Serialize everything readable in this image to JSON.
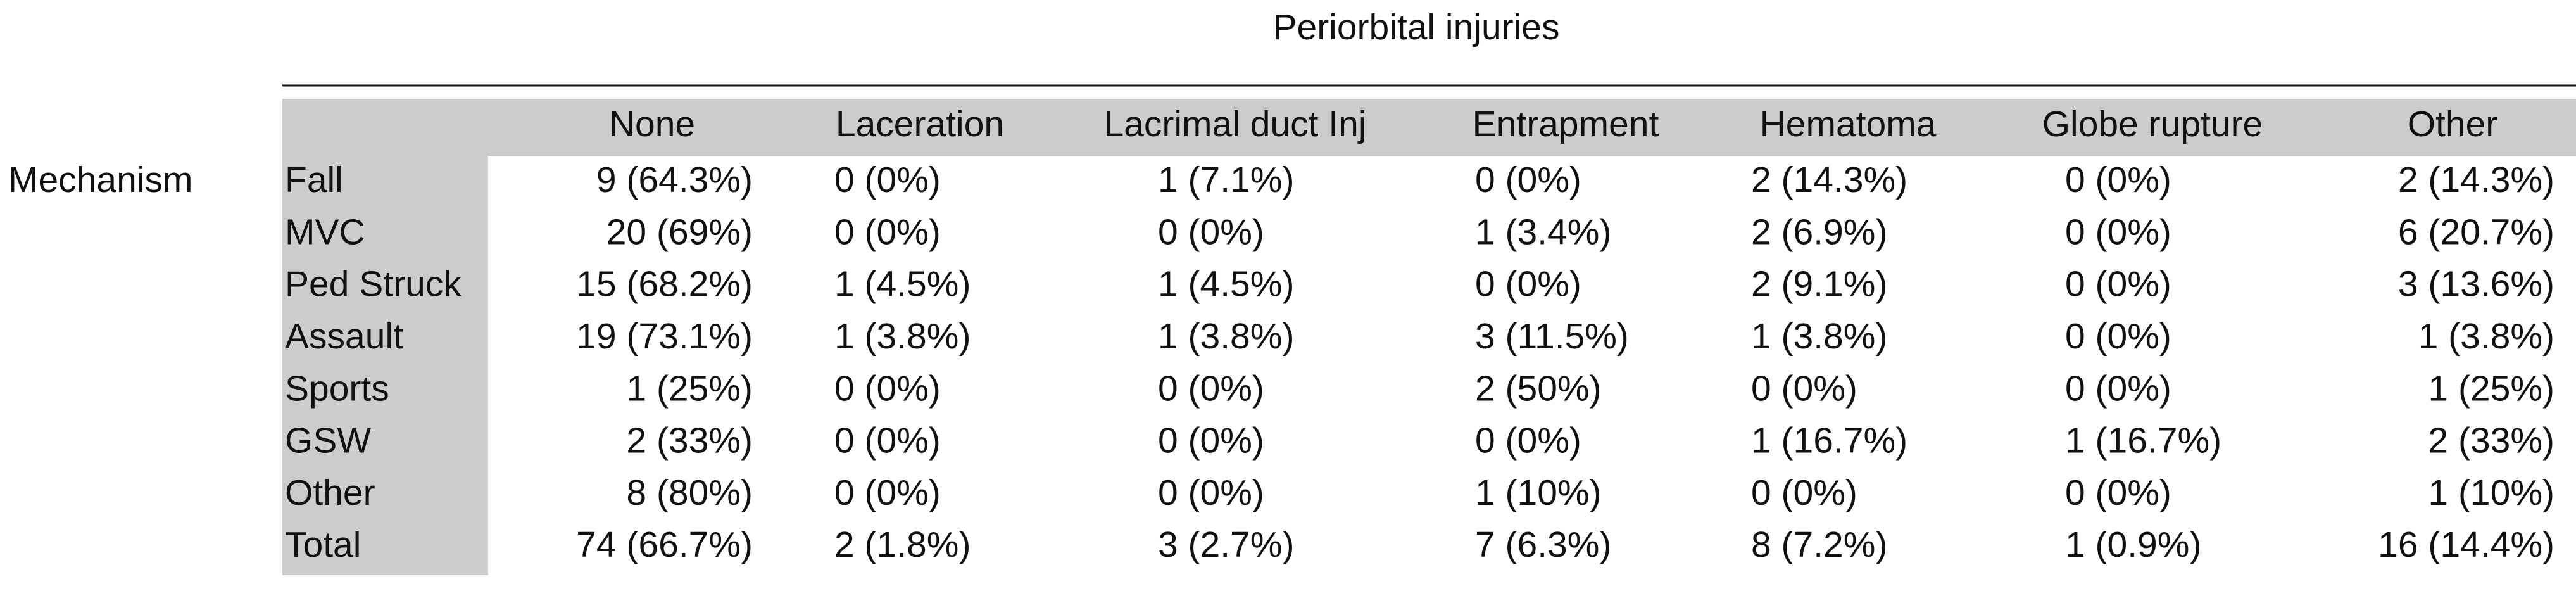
{
  "title": "Periorbital injuries",
  "table": {
    "row_group": "Mechanism",
    "columns": [
      "None",
      "Laceration",
      "Lacrimal duct Inj",
      "Entrapment",
      "Hematoma",
      "Globe rupture",
      "Other"
    ],
    "rows": [
      {
        "label": "Fall",
        "cells": [
          "9 (64.3%)",
          "0 (0%)",
          "1 (7.1%)",
          "0 (0%)",
          "2 (14.3%)",
          "0 (0%)",
          "2 (14.3%)"
        ]
      },
      {
        "label": "MVC",
        "cells": [
          "20 (69%)",
          "0 (0%)",
          "0 (0%)",
          "1 (3.4%)",
          "2 (6.9%)",
          "0 (0%)",
          "6 (20.7%)"
        ]
      },
      {
        "label": "Ped Struck",
        "cells": [
          "15 (68.2%)",
          "1 (4.5%)",
          "1 (4.5%)",
          "0 (0%)",
          "2 (9.1%)",
          "0 (0%)",
          "3 (13.6%)"
        ]
      },
      {
        "label": "Assault",
        "cells": [
          "19 (73.1%)",
          "1 (3.8%)",
          "1 (3.8%)",
          "3 (11.5%)",
          "1 (3.8%)",
          "0 (0%)",
          "1 (3.8%)"
        ]
      },
      {
        "label": "Sports",
        "cells": [
          "1 (25%)",
          "0 (0%)",
          "0 (0%)",
          "2 (50%)",
          "0 (0%)",
          "0 (0%)",
          "1 (25%)"
        ]
      },
      {
        "label": "GSW",
        "cells": [
          "2 (33%)",
          "0 (0%)",
          "0 (0%)",
          "0 (0%)",
          "1 (16.7%)",
          "1 (16.7%)",
          "2 (33%)"
        ]
      },
      {
        "label": "Other",
        "cells": [
          "8 (80%)",
          "0 (0%)",
          "0 (0%)",
          "1 (10%)",
          "0 (0%)",
          "0 (0%)",
          "1 (10%)"
        ]
      },
      {
        "label": "Total",
        "cells": [
          "74 (66.7%)",
          "2 (1.8%)",
          "3 (2.7%)",
          "7 (6.3%)",
          "8 (7.2%)",
          "1 (0.9%)",
          "16 (14.4%)"
        ]
      }
    ]
  }
}
